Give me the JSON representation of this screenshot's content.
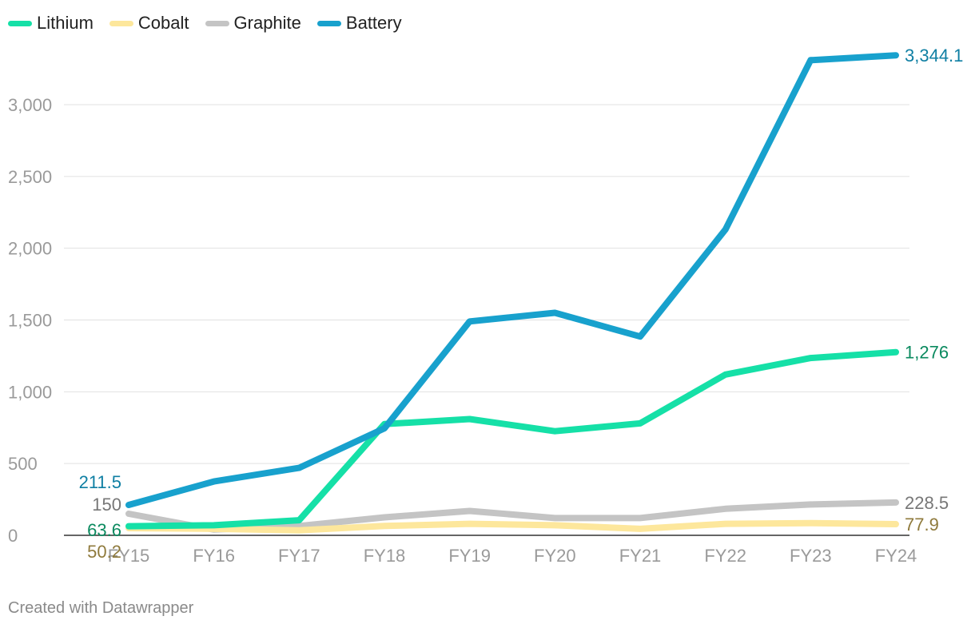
{
  "chart_data": {
    "type": "line",
    "title": "",
    "xlabel": "",
    "ylabel": "",
    "categories": [
      "FY15",
      "FY16",
      "FY17",
      "FY18",
      "FY19",
      "FY20",
      "FY21",
      "FY22",
      "FY23",
      "FY24"
    ],
    "ylim": [
      0,
      3500
    ],
    "yticks": [
      0,
      500,
      1000,
      1500,
      2000,
      2500,
      3000
    ],
    "ytick_labels": [
      "0",
      "500",
      "1,000",
      "1,500",
      "2,000",
      "2,500",
      "3,000"
    ],
    "grid": true,
    "legend_position": "top-left",
    "series": [
      {
        "name": "Graphite",
        "color": "#c4c4c4",
        "label_color": "#777777",
        "values": [
          150,
          40,
          65,
          125,
          170,
          120,
          120,
          185,
          215,
          228.5
        ],
        "start_label": "150",
        "end_label": "228.5"
      },
      {
        "name": "Cobalt",
        "color": "#fde79c",
        "label_color": "#8f7a3c",
        "values": [
          50.2,
          45,
          35,
          65,
          80,
          70,
          45,
          80,
          85,
          77.9
        ],
        "start_label": "50.2",
        "end_label": "77.9"
      },
      {
        "name": "Lithium",
        "color": "#15e0a7",
        "label_color": "#0b8a5f",
        "values": [
          63.6,
          70,
          105,
          775,
          810,
          725,
          780,
          1120,
          1235,
          1276
        ],
        "start_label": "63.6",
        "end_label": "1,276"
      },
      {
        "name": "Battery",
        "color": "#18a1cd",
        "label_color": "#0f7fa3",
        "values": [
          211.5,
          375,
          470,
          745,
          1490,
          1550,
          1385,
          2130,
          3310,
          3344.1
        ],
        "start_label": "211.5",
        "end_label": "3,344.1"
      }
    ],
    "legend": [
      "Lithium",
      "Cobalt",
      "Graphite",
      "Battery"
    ]
  },
  "footer": "Created with Datawrapper"
}
